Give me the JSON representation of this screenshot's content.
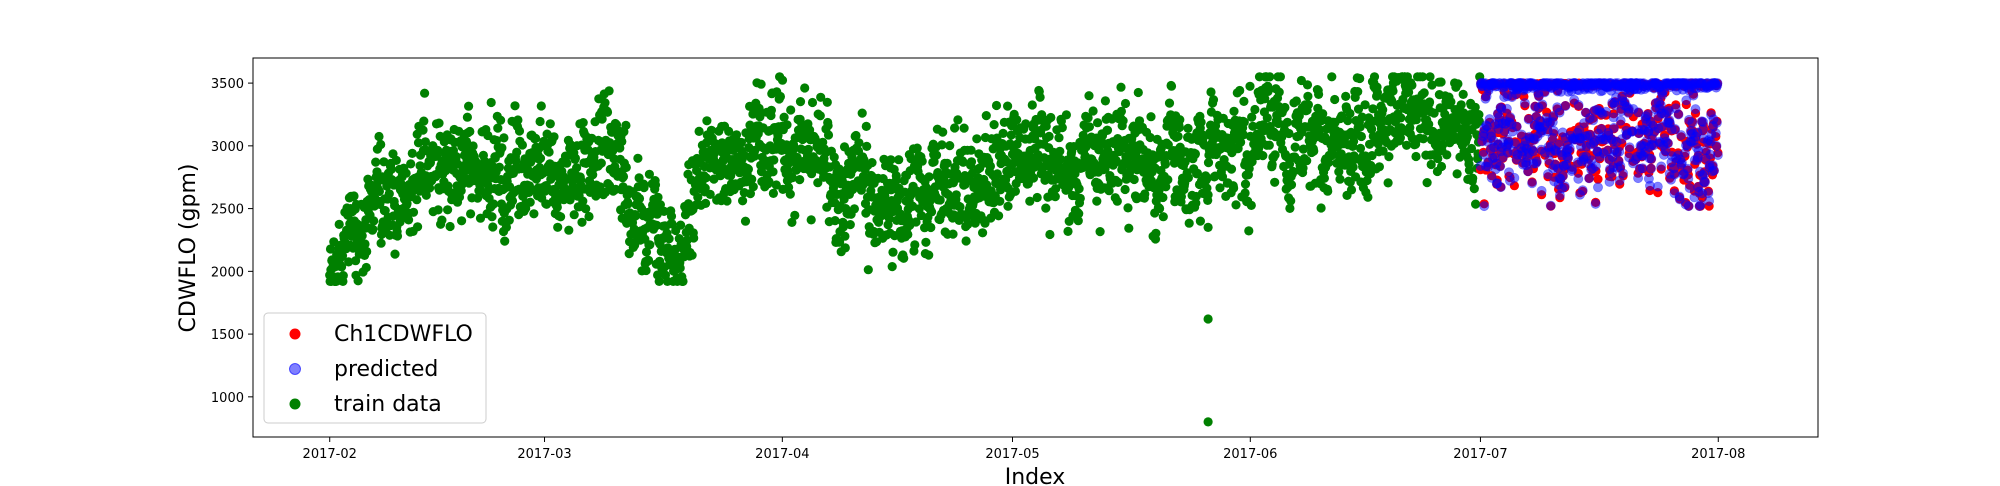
{
  "chart_data": {
    "type": "scatter",
    "xlabel": "Index",
    "ylabel": "CDWFLO (gpm)",
    "x_ticks": [
      "2017-02",
      "2017-03",
      "2017-04",
      "2017-05",
      "2017-06",
      "2017-07",
      "2017-08"
    ],
    "x_range": [
      "2017-01-22",
      "2017-08-14"
    ],
    "y_ticks": [
      1000,
      1500,
      2000,
      2500,
      3000,
      3500
    ],
    "ylim": [
      680,
      3700
    ],
    "grid": false,
    "legend_position": "lower-left",
    "series": [
      {
        "name": "Ch1CDWFLO",
        "color": "#ff0000",
        "opacity": 1.0,
        "x_start": "2017-07-01",
        "x_end": "2017-07-31",
        "y_band": [
          2520,
          3500
        ],
        "y_mean": 3200
      },
      {
        "name": "predicted",
        "color": "#0000ff",
        "opacity": 0.5,
        "x_start": "2017-07-01",
        "x_end": "2017-07-31",
        "y_band": [
          2520,
          3500
        ],
        "y_mean": 3200
      },
      {
        "name": "train data",
        "color": "#008000",
        "opacity": 1.0,
        "x_start": "2017-02-01",
        "x_end": "2017-06-30",
        "y_band": [
          1920,
          3550
        ],
        "trend": [
          {
            "x": "2017-02-01",
            "y": 2100
          },
          {
            "x": "2017-02-10",
            "y": 2650
          },
          {
            "x": "2017-02-20",
            "y": 2700
          },
          {
            "x": "2017-03-01",
            "y": 2750
          },
          {
            "x": "2017-03-10",
            "y": 2850
          },
          {
            "x": "2017-03-16",
            "y": 2200
          },
          {
            "x": "2017-03-25",
            "y": 2900
          },
          {
            "x": "2017-04-05",
            "y": 2900
          },
          {
            "x": "2017-04-15",
            "y": 2600
          },
          {
            "x": "2017-04-25",
            "y": 2700
          },
          {
            "x": "2017-05-05",
            "y": 2950
          },
          {
            "x": "2017-05-15",
            "y": 3000
          },
          {
            "x": "2017-05-25",
            "y": 2950
          },
          {
            "x": "2017-06-05",
            "y": 3100
          },
          {
            "x": "2017-06-15",
            "y": 3100
          },
          {
            "x": "2017-06-25",
            "y": 3150
          },
          {
            "x": "2017-06-30",
            "y": 3250
          }
        ],
        "outliers": [
          {
            "x": "2017-05-26",
            "y": 1620
          },
          {
            "x": "2017-05-26",
            "y": 800
          },
          {
            "x": "2017-05-26",
            "y": 2350
          },
          {
            "x": "2017-05-25",
            "y": 2400
          }
        ]
      }
    ]
  }
}
